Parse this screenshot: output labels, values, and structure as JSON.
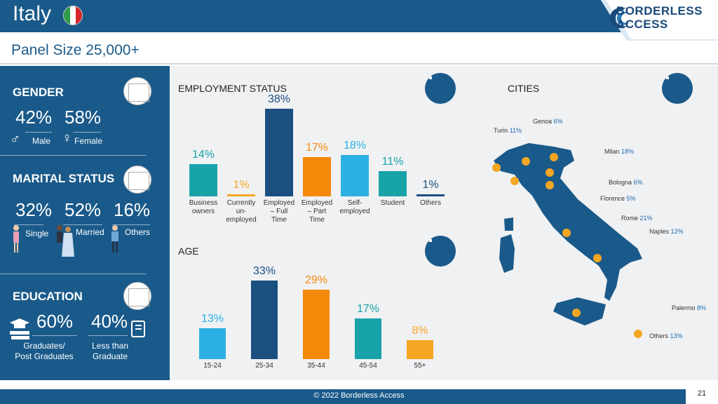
{
  "header": {
    "title": "Italy",
    "subtitle": "Panel Size 25,000+",
    "logo_line1": "BORDERLESS",
    "logo_line2": "ACCESS"
  },
  "gender": {
    "heading": "GENDER",
    "male_pct": "42%",
    "female_pct": "58%",
    "male_label": "Male",
    "female_label": "Female"
  },
  "marital": {
    "heading": "MARITAL STATUS",
    "single_pct": "32%",
    "married_pct": "52%",
    "others_pct": "16%",
    "single_label": "Single",
    "married_label": "Married",
    "others_label": "Others"
  },
  "education": {
    "heading": "EDUCATION",
    "grad_pct": "60%",
    "less_pct": "40%",
    "grad_label1": "Graduates/",
    "grad_label2": "Post Graduates",
    "less_label1": "Less than",
    "less_label2": "Graduate"
  },
  "chart_data": [
    {
      "type": "bar",
      "title": "EMPLOYMENT STATUS",
      "categories": [
        "Business owners",
        "Currently un-employed",
        "Employed – Full Time",
        "Employed – Part Time",
        "Self-employed",
        "Student",
        "Others"
      ],
      "values": [
        14,
        1,
        38,
        17,
        18,
        11,
        1
      ],
      "labels": [
        "14%",
        "1%",
        "38%",
        "17%",
        "18%",
        "11%",
        "1%"
      ],
      "colors": [
        "#17a3a8",
        "#f5a623",
        "#1a4f80",
        "#f5890a",
        "#2cb0e3",
        "#17a3a8",
        "#1a4f80"
      ]
    },
    {
      "type": "bar",
      "title": "AGE",
      "categories": [
        "15-24",
        "25-34",
        "35-44",
        "45-54",
        "55+"
      ],
      "values": [
        13,
        33,
        29,
        17,
        8
      ],
      "labels": [
        "13%",
        "33%",
        "29%",
        "17%",
        "8%"
      ],
      "colors": [
        "#2cb0e3",
        "#1a4f80",
        "#f5890a",
        "#17a3a8",
        "#f5a623"
      ]
    }
  ],
  "employment_label_lines": [
    [
      "Business",
      "owners"
    ],
    [
      "Currently",
      "un-",
      "employed"
    ],
    [
      "Employed",
      "– Full",
      "Time"
    ],
    [
      "Employed",
      "– Part",
      "Time"
    ],
    [
      "Self-",
      "employed"
    ],
    [
      "Student"
    ],
    [
      "Others"
    ]
  ],
  "cities": {
    "heading": "CITIES",
    "items": [
      {
        "name": "Genoa",
        "pct": "6%"
      },
      {
        "name": "Turin",
        "pct": "11%"
      },
      {
        "name": "Milan",
        "pct": "18%"
      },
      {
        "name": "Bologna",
        "pct": "6%"
      },
      {
        "name": "Florence",
        "pct": "5%"
      },
      {
        "name": "Rome",
        "pct": "21%"
      },
      {
        "name": "Naples",
        "pct": "12%"
      },
      {
        "name": "Palermo",
        "pct": "8%"
      },
      {
        "name": "Others",
        "pct": "13%"
      }
    ]
  },
  "footer": {
    "copyright": "© 2022 Borderless Access",
    "page": "21"
  },
  "colors": {
    "brand": "#1a5a8a",
    "accent_orange": "#f5a623"
  }
}
